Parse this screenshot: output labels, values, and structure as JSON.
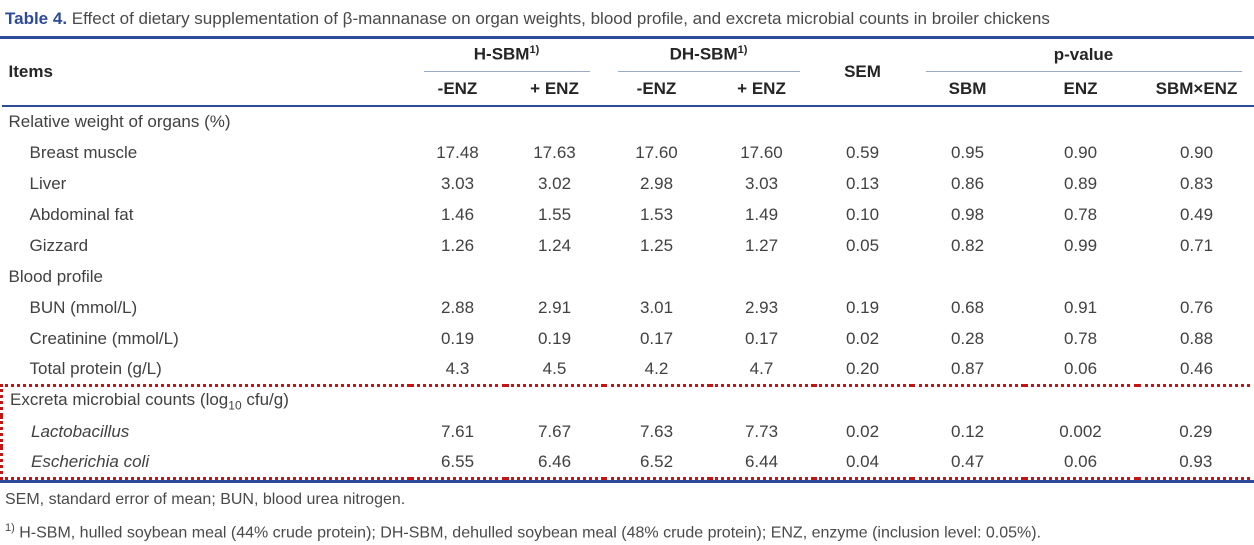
{
  "caption": {
    "label": "Table 4.",
    "text": " Effect of dietary supplementation of β-mannanase on organ weights, blood profile, and excreta microbial counts in broiler chickens"
  },
  "colors": {
    "accent_navy": "#2e4b9b",
    "highlight_red": "#c41414",
    "group_underline_gray": "#9aaac8"
  },
  "table": {
    "header": {
      "items": "Items",
      "group1": "H-SBM",
      "group1_sup": "1)",
      "group2": "DH-SBM",
      "group2_sup": "1)",
      "sem": "SEM",
      "pvalue": "p-value",
      "sub": [
        "-ENZ",
        "+ ENZ",
        "-ENZ",
        "+ ENZ"
      ],
      "pcols": [
        "SBM",
        "ENZ",
        "SBM×ENZ"
      ]
    },
    "sections": [
      {
        "title": "Relative weight of organs (%)",
        "rows": [
          {
            "label": "Breast muscle",
            "values": [
              "17.48",
              "17.63",
              "17.60",
              "17.60",
              "0.59",
              "0.95",
              "0.90",
              "0.90"
            ]
          },
          {
            "label": "Liver",
            "values": [
              "3.03",
              "3.02",
              "2.98",
              "3.03",
              "0.13",
              "0.86",
              "0.89",
              "0.83"
            ]
          },
          {
            "label": "Abdominal fat",
            "values": [
              "1.46",
              "1.55",
              "1.53",
              "1.49",
              "0.10",
              "0.98",
              "0.78",
              "0.49"
            ]
          },
          {
            "label": "Gizzard",
            "values": [
              "1.26",
              "1.24",
              "1.25",
              "1.27",
              "0.05",
              "0.82",
              "0.99",
              "0.71"
            ]
          }
        ]
      },
      {
        "title": "Blood profile",
        "rows": [
          {
            "label": "BUN (mmol/L)",
            "values": [
              "2.88",
              "2.91",
              "3.01",
              "2.93",
              "0.19",
              "0.68",
              "0.91",
              "0.76"
            ]
          },
          {
            "label": "Creatinine (mmol/L)",
            "values": [
              "0.19",
              "0.19",
              "0.17",
              "0.17",
              "0.02",
              "0.28",
              "0.78",
              "0.88"
            ]
          },
          {
            "label": "Total protein (g/L)",
            "values": [
              "4.3",
              "4.5",
              "4.2",
              "4.7",
              "0.20",
              "0.87",
              "0.06",
              "0.46"
            ]
          }
        ]
      },
      {
        "title_pre": "Excreta microbial counts (log",
        "title_sub": "10",
        "title_post": " cfu/g)",
        "highlight": true,
        "rows": [
          {
            "label": "Lactobacillus",
            "italic": true,
            "values": [
              "7.61",
              "7.67",
              "7.63",
              "7.73",
              "0.02",
              "0.12",
              "0.002",
              "0.29"
            ]
          },
          {
            "label": "Escherichia coli",
            "italic": true,
            "values": [
              "6.55",
              "6.46",
              "6.52",
              "6.44",
              "0.04",
              "0.47",
              "0.06",
              "0.93"
            ]
          }
        ]
      }
    ]
  },
  "footnotes": {
    "line1": "SEM, standard error of mean; BUN, blood urea nitrogen.",
    "line2_sup": "1)",
    "line2": " H-SBM, hulled soybean meal (44% crude protein); DH-SBM, dehulled soybean meal (48% crude protein); ENZ, enzyme (inclusion level: 0.05%)."
  }
}
